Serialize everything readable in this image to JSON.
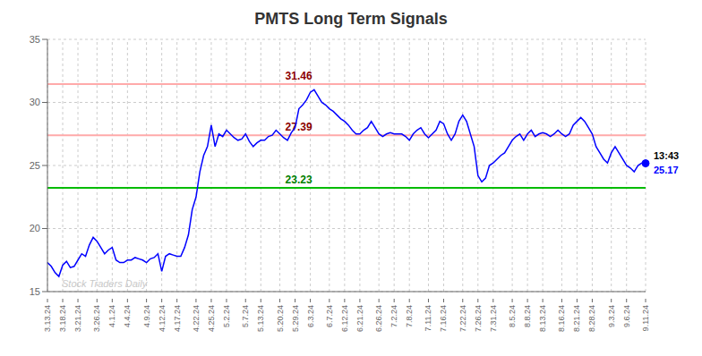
{
  "chart_data": {
    "type": "line",
    "title": "PMTS Long Term Signals",
    "color": "blue",
    "grid": true,
    "ylim": [
      15,
      35
    ],
    "yticks": [
      15,
      20,
      25,
      30,
      35
    ],
    "reference_lines": [
      {
        "y": 31.46,
        "color": "#ffaaaa",
        "label": "31.46",
        "label_color": "darkred"
      },
      {
        "y": 27.39,
        "color": "#ffaaaa",
        "label": "27.39",
        "label_color": "darkred"
      },
      {
        "y": 23.23,
        "color": "#00bb00",
        "label": "23.23",
        "label_color": "green"
      }
    ],
    "last_point_labels": [
      {
        "text": "13:43",
        "color": "black"
      },
      {
        "text": "25.17",
        "color": "blue"
      }
    ],
    "annotations": [
      {
        "text": "Stock Traders Daily",
        "color": "#c8c8c8"
      }
    ],
    "categories": [
      "3.13.24",
      null,
      null,
      null,
      "3.18.24",
      null,
      null,
      null,
      "3.21.24",
      null,
      null,
      null,
      null,
      "3.26.24",
      null,
      null,
      null,
      "4.1.24",
      null,
      null,
      null,
      "4.4.24",
      null,
      null,
      null,
      null,
      "4.9.24",
      null,
      null,
      null,
      "4.12.24",
      null,
      null,
      null,
      "4.17.24",
      null,
      null,
      null,
      null,
      "4.22.24",
      null,
      null,
      null,
      "4.25.24",
      null,
      null,
      null,
      "5.2.24",
      null,
      null,
      null,
      null,
      "5.7.24",
      null,
      null,
      null,
      "5.13.24",
      null,
      null,
      null,
      null,
      "5.20.24",
      null,
      null,
      null,
      "5.29.24",
      null,
      null,
      null,
      "6.3.24",
      null,
      null,
      null,
      null,
      "6.7.24",
      null,
      null,
      null,
      "6.12.24",
      null,
      null,
      null,
      "6.21.24",
      null,
      null,
      null,
      null,
      "6.26.24",
      null,
      null,
      null,
      "7.2.24",
      null,
      null,
      null,
      "7.8.24",
      null,
      null,
      null,
      null,
      "7.11.24",
      null,
      null,
      null,
      "7.16.24",
      null,
      null,
      null,
      null,
      "7.22.24",
      null,
      null,
      null,
      "7.26.24",
      null,
      null,
      null,
      "7.31.24",
      null,
      null,
      null,
      null,
      "8.5.24",
      null,
      null,
      null,
      "8.8.24",
      null,
      null,
      null,
      "8.13.24",
      null,
      null,
      null,
      null,
      "8.16.24",
      null,
      null,
      null,
      "8.21.24",
      null,
      null,
      null,
      "8.28.24",
      null,
      null,
      null,
      null,
      "9.3.24",
      null,
      null,
      null,
      "9.6.24",
      null,
      null,
      null,
      null,
      "9.11.24"
    ],
    "values": [
      17.3,
      17.0,
      16.5,
      16.2,
      17.1,
      17.4,
      16.9,
      17.0,
      17.5,
      18.0,
      17.8,
      18.7,
      19.3,
      19.0,
      18.5,
      18.0,
      18.3,
      18.5,
      17.5,
      17.3,
      17.3,
      17.5,
      17.5,
      17.7,
      17.6,
      17.5,
      17.3,
      17.6,
      17.7,
      18.0,
      16.6,
      17.8,
      18.0,
      17.9,
      17.8,
      17.8,
      18.5,
      19.5,
      21.5,
      22.5,
      24.5,
      25.8,
      26.5,
      28.2,
      26.5,
      27.5,
      27.3,
      27.8,
      27.5,
      27.2,
      27.0,
      27.1,
      27.5,
      26.9,
      26.5,
      26.8,
      27.0,
      27.0,
      27.3,
      27.4,
      27.8,
      27.5,
      27.2,
      27.0,
      27.6,
      28.0,
      29.5,
      29.8,
      30.2,
      30.8,
      31.0,
      30.5,
      30.0,
      29.8,
      29.5,
      29.3,
      29.0,
      28.7,
      28.5,
      28.2,
      27.8,
      27.5,
      27.5,
      27.8,
      28.0,
      28.5,
      28.0,
      27.5,
      27.3,
      27.5,
      27.6,
      27.5,
      27.5,
      27.5,
      27.3,
      27.0,
      27.5,
      27.8,
      28.0,
      27.5,
      27.2,
      27.5,
      27.8,
      28.5,
      28.3,
      27.5,
      27.0,
      27.5,
      28.5,
      29.0,
      28.5,
      27.5,
      26.5,
      24.2,
      23.7,
      24.0,
      25.0,
      25.2,
      25.5,
      25.8,
      26.0,
      26.5,
      27.0,
      27.3,
      27.5,
      27.0,
      27.5,
      27.8,
      27.3,
      27.5,
      27.6,
      27.5,
      27.3,
      27.5,
      27.8,
      27.5,
      27.3,
      27.5,
      28.2,
      28.5,
      28.8,
      28.5,
      28.0,
      27.5,
      26.5,
      26.0,
      25.5,
      25.2,
      26.0,
      26.5,
      26.0,
      25.5,
      25.0,
      24.8,
      24.5,
      25.0,
      25.2,
      25.17
    ]
  }
}
